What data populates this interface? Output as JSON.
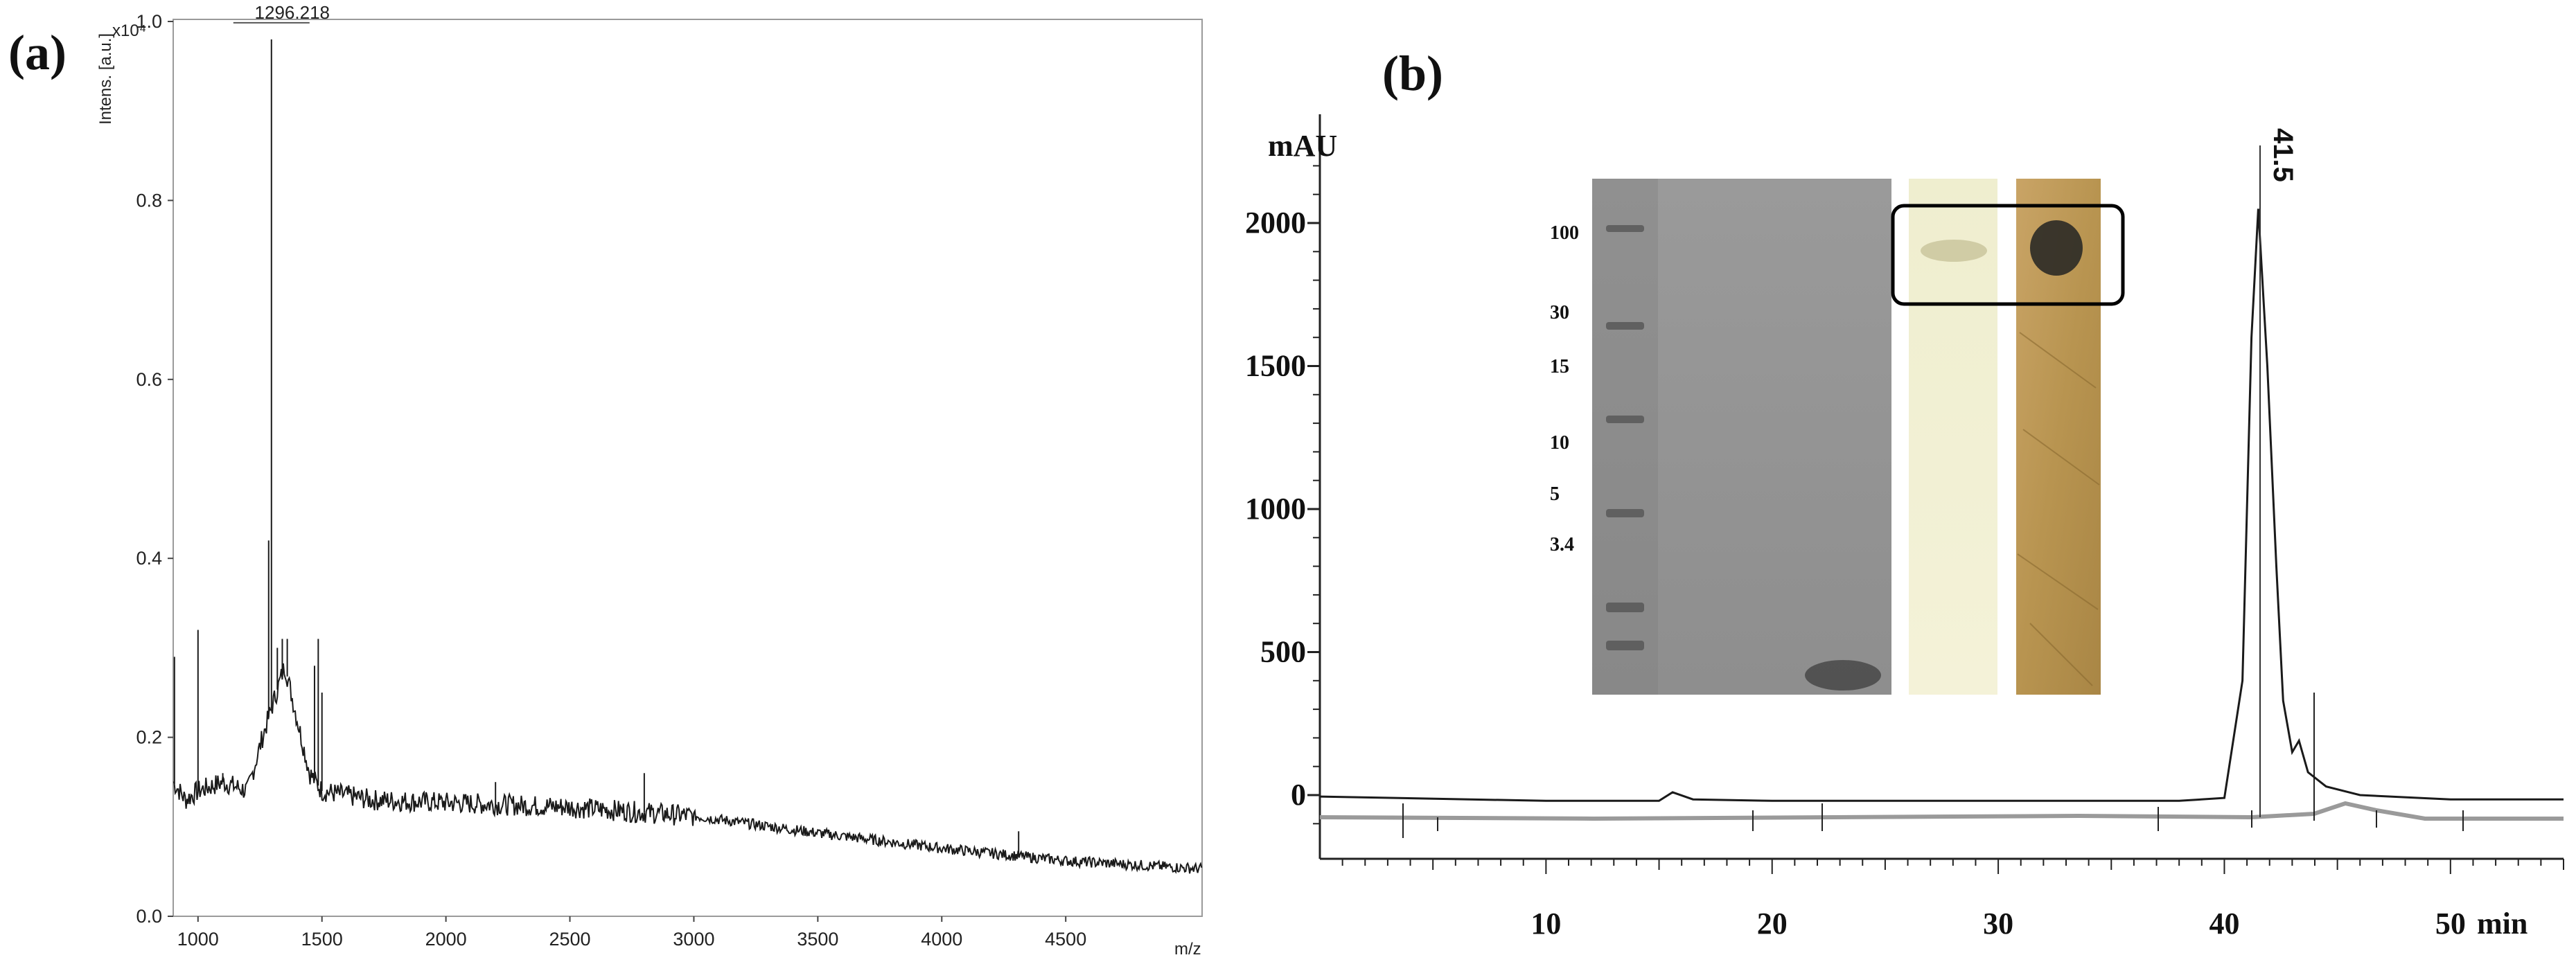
{
  "figure": {
    "panel_a_label": "(a)",
    "panel_b_label": "(b)"
  },
  "chart_data": [
    {
      "type": "line",
      "panel": "(a)",
      "title": "",
      "xlabel": "m/z",
      "ylabel": "Intens. [a.u.]",
      "y_multiplier": "x10⁴",
      "xlim": [
        900,
        5050
      ],
      "ylim": [
        0,
        1.0
      ],
      "x_ticks": [
        1000,
        1500,
        2000,
        2500,
        3000,
        3500,
        4000,
        4500
      ],
      "y_ticks": [
        "0.0",
        "0.2",
        "0.4",
        "0.6",
        "0.8",
        "1.0"
      ],
      "peak_annotation": {
        "label": "1296.218",
        "x": 1296.218,
        "y": 0.98
      },
      "baseline": {
        "x": [
          900,
          950,
          1000,
          1100,
          1200,
          1260,
          1350,
          1450,
          1500,
          1700,
          2000,
          2500,
          3000,
          3500,
          4000,
          4500,
          5050
        ],
        "y": [
          0.15,
          0.13,
          0.14,
          0.15,
          0.14,
          0.2,
          0.28,
          0.16,
          0.14,
          0.13,
          0.127,
          0.122,
          0.112,
          0.093,
          0.076,
          0.062,
          0.053
        ]
      },
      "peaks": [
        {
          "x": 905,
          "y": 0.29
        },
        {
          "x": 1000,
          "y": 0.32
        },
        {
          "x": 1100,
          "y": 0.16
        },
        {
          "x": 1285,
          "y": 0.42
        },
        {
          "x": 1296.218,
          "y": 0.98
        },
        {
          "x": 1320,
          "y": 0.3
        },
        {
          "x": 1340,
          "y": 0.31
        },
        {
          "x": 1360,
          "y": 0.31
        },
        {
          "x": 1470,
          "y": 0.28
        },
        {
          "x": 1485,
          "y": 0.31
        },
        {
          "x": 1500,
          "y": 0.25
        },
        {
          "x": 2200,
          "y": 0.15
        },
        {
          "x": 2800,
          "y": 0.16
        },
        {
          "x": 4310,
          "y": 0.095
        }
      ]
    },
    {
      "type": "line",
      "panel": "(b)",
      "title": "",
      "xlabel": "min",
      "ylabel": "mAU",
      "xlim": [
        0,
        55
      ],
      "ylim": [
        -150,
        2250
      ],
      "x_ticks": [
        10,
        20,
        30,
        40,
        50
      ],
      "y_ticks": [
        0,
        500,
        1000,
        1500,
        2000
      ],
      "peak_annotation": {
        "label": "41.5",
        "x": 41.5,
        "y": 2050
      },
      "series": [
        {
          "x": [
            0,
            10,
            15,
            15.6,
            16.5,
            20,
            30,
            38,
            40,
            40.8,
            41.2,
            41.5,
            41.9,
            42.3,
            42.6,
            43.0,
            43.3,
            43.7,
            44.5,
            46,
            50,
            55
          ],
          "y": [
            -5,
            -20,
            -20,
            10,
            -15,
            -20,
            -20,
            -20,
            -10,
            400,
            1600,
            2050,
            1500,
            800,
            330,
            150,
            190,
            80,
            30,
            0,
            -15,
            -15
          ]
        }
      ],
      "inset_gel": {
        "marker_labels": [
          "100",
          "30",
          "15",
          "10",
          "5",
          "3.4"
        ]
      }
    }
  ]
}
